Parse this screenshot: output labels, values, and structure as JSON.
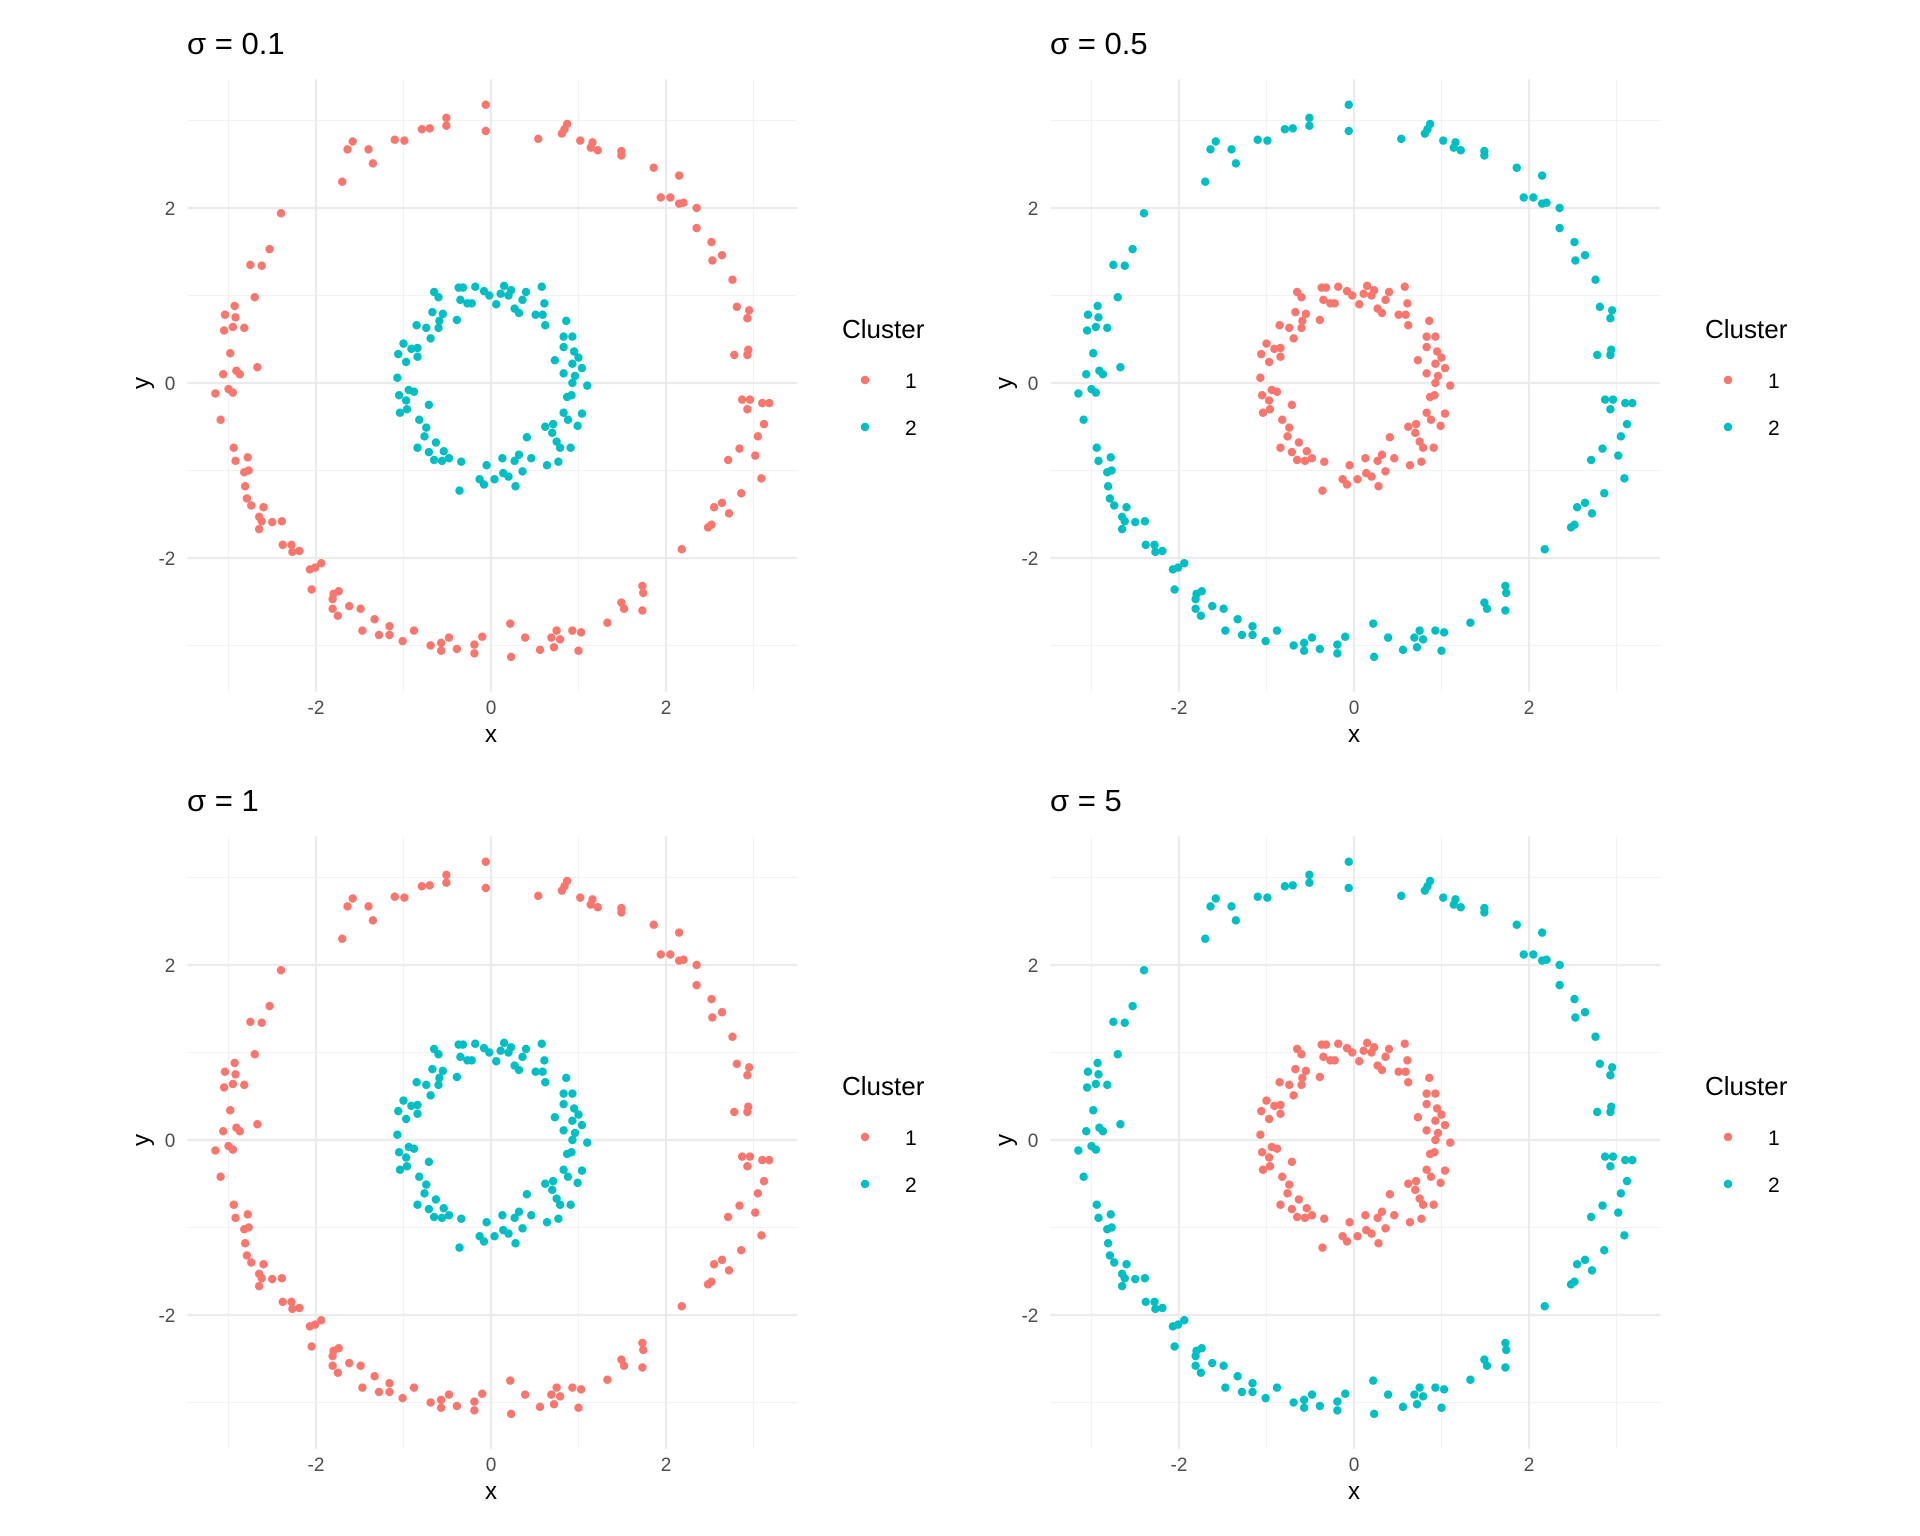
{
  "chart_data": {
    "type": "scatter",
    "xlabel": "x",
    "ylabel": "y",
    "xlim": [
      -3.47,
      3.5
    ],
    "ylim": [
      -3.53,
      3.47
    ],
    "x_ticks": [
      "-2",
      "0",
      "2"
    ],
    "y_ticks": [
      "-2",
      "0",
      "2"
    ],
    "grid": true,
    "legend": {
      "title": "Cluster",
      "placement": "right",
      "entries": [
        "1",
        "2"
      ]
    },
    "colors": {
      "1": "#F8766D",
      "2": "#00BFC4"
    },
    "facets": [
      {
        "title": "σ = 0.1",
        "group_cluster": [
          "1",
          "2"
        ]
      },
      {
        "title": "σ = 0.5",
        "group_cluster": [
          "2",
          "1"
        ]
      },
      {
        "title": "σ = 1",
        "group_cluster": [
          "1",
          "2"
        ]
      },
      {
        "title": "σ = 5",
        "group_cluster": [
          "2",
          "1"
        ]
      }
    ],
    "groups": [
      {
        "points": [
          [
            -0.06,
            3.18
          ],
          [
            -0.06,
            2.88
          ],
          [
            -0.51,
            3.03
          ],
          [
            -0.51,
            2.94
          ],
          [
            -0.7,
            2.91
          ],
          [
            -0.79,
            2.9
          ],
          [
            -0.99,
            2.77
          ],
          [
            -1.1,
            2.78
          ],
          [
            -1.35,
            2.51
          ],
          [
            -1.4,
            2.67
          ],
          [
            -1.58,
            2.76
          ],
          [
            -1.64,
            2.67
          ],
          [
            -1.7,
            2.3
          ],
          [
            -2.4,
            1.94
          ],
          [
            -2.53,
            1.53
          ],
          [
            -2.62,
            1.34
          ],
          [
            -2.75,
            1.35
          ],
          [
            -2.7,
            0.98
          ],
          [
            -2.93,
            0.88
          ],
          [
            -3.04,
            0.78
          ],
          [
            -2.92,
            0.75
          ],
          [
            -2.95,
            0.64
          ],
          [
            -2.82,
            0.63
          ],
          [
            -3.05,
            0.6
          ],
          [
            -2.98,
            0.34
          ],
          [
            -2.67,
            0.18
          ],
          [
            -2.91,
            0.14
          ],
          [
            -3.06,
            0.1
          ],
          [
            -2.87,
            0.1
          ],
          [
            -3.15,
            -0.12
          ],
          [
            -3.0,
            -0.07
          ],
          [
            -2.95,
            -0.11
          ],
          [
            -3.09,
            -0.42
          ],
          [
            -2.94,
            -0.74
          ],
          [
            -2.92,
            -0.89
          ],
          [
            -2.78,
            -0.85
          ],
          [
            -2.82,
            -1.02
          ],
          [
            -2.77,
            -1.0
          ],
          [
            -2.81,
            -1.18
          ],
          [
            -2.79,
            -1.32
          ],
          [
            -2.74,
            -1.4
          ],
          [
            -2.6,
            -1.42
          ],
          [
            -2.65,
            -1.53
          ],
          [
            -2.62,
            -1.58
          ],
          [
            -2.65,
            -1.67
          ],
          [
            -2.5,
            -1.59
          ],
          [
            -2.39,
            -1.58
          ],
          [
            -2.38,
            -1.85
          ],
          [
            -2.28,
            -1.85
          ],
          [
            -2.27,
            -1.93
          ],
          [
            -2.19,
            -1.92
          ],
          [
            -2.07,
            -2.13
          ],
          [
            -2.01,
            -2.11
          ],
          [
            -1.94,
            -2.06
          ],
          [
            -2.05,
            -2.36
          ],
          [
            -1.74,
            -2.38
          ],
          [
            -1.8,
            -2.41
          ],
          [
            -1.81,
            -2.47
          ],
          [
            -1.81,
            -2.58
          ],
          [
            -1.75,
            -2.66
          ],
          [
            -1.62,
            -2.55
          ],
          [
            -1.49,
            -2.58
          ],
          [
            -1.47,
            -2.83
          ],
          [
            -1.33,
            -2.7
          ],
          [
            -1.28,
            -2.88
          ],
          [
            -1.16,
            -2.78
          ],
          [
            -1.16,
            -2.88
          ],
          [
            -1.01,
            -2.95
          ],
          [
            -0.88,
            -2.83
          ],
          [
            -0.69,
            -3.0
          ],
          [
            -0.57,
            -2.97
          ],
          [
            -0.57,
            -3.06
          ],
          [
            -0.48,
            -2.91
          ],
          [
            -0.39,
            -3.04
          ],
          [
            -0.19,
            -2.99
          ],
          [
            -0.19,
            -3.09
          ],
          [
            -0.1,
            -2.9
          ],
          [
            0.22,
            -2.75
          ],
          [
            0.23,
            -3.13
          ],
          [
            0.39,
            -2.91
          ],
          [
            0.56,
            -3.05
          ],
          [
            0.69,
            -2.91
          ],
          [
            0.72,
            -3.02
          ],
          [
            0.75,
            -2.83
          ],
          [
            0.79,
            -2.93
          ],
          [
            0.93,
            -2.83
          ],
          [
            1.03,
            -2.85
          ],
          [
            1.0,
            -3.06
          ],
          [
            1.33,
            -2.74
          ],
          [
            1.49,
            -2.51
          ],
          [
            1.52,
            -2.58
          ],
          [
            1.73,
            -2.32
          ],
          [
            1.74,
            -2.4
          ],
          [
            1.73,
            -2.6
          ],
          [
            2.18,
            -1.9
          ],
          [
            2.48,
            -1.65
          ],
          [
            2.52,
            -1.62
          ],
          [
            2.55,
            -1.42
          ],
          [
            2.64,
            -1.37
          ],
          [
            2.72,
            -1.49
          ],
          [
            2.86,
            -1.26
          ],
          [
            2.71,
            -0.88
          ],
          [
            2.84,
            -0.75
          ],
          [
            3.02,
            -0.83
          ],
          [
            3.09,
            -1.09
          ],
          [
            3.05,
            -0.61
          ],
          [
            3.12,
            -0.47
          ],
          [
            2.87,
            -0.19
          ],
          [
            2.96,
            -0.19
          ],
          [
            2.93,
            -0.3
          ],
          [
            3.1,
            -0.23
          ],
          [
            3.18,
            -0.23
          ],
          [
            2.78,
            0.32
          ],
          [
            2.93,
            0.32
          ],
          [
            2.94,
            0.38
          ],
          [
            2.93,
            0.74
          ],
          [
            2.95,
            0.83
          ],
          [
            2.81,
            0.87
          ],
          [
            2.76,
            1.18
          ],
          [
            2.53,
            1.4
          ],
          [
            2.64,
            1.46
          ],
          [
            2.52,
            1.61
          ],
          [
            2.35,
            1.77
          ],
          [
            2.35,
            2.0
          ],
          [
            2.15,
            2.05
          ],
          [
            2.2,
            2.06
          ],
          [
            1.94,
            2.12
          ],
          [
            2.05,
            2.12
          ],
          [
            2.15,
            2.37
          ],
          [
            1.86,
            2.46
          ],
          [
            1.49,
            2.65
          ],
          [
            1.49,
            2.6
          ],
          [
            1.22,
            2.66
          ],
          [
            1.16,
            2.75
          ],
          [
            1.14,
            2.69
          ],
          [
            1.02,
            2.77
          ],
          [
            0.87,
            2.96
          ],
          [
            0.84,
            2.9
          ],
          [
            0.81,
            2.85
          ],
          [
            0.54,
            2.79
          ]
        ]
      },
      {
        "points": [
          [
            -0.37,
            1.09
          ],
          [
            -0.32,
            1.09
          ],
          [
            -0.18,
            1.1
          ],
          [
            -0.08,
            1.05
          ],
          [
            -0.02,
            1.0
          ],
          [
            0.06,
            0.9
          ],
          [
            0.11,
            1.02
          ],
          [
            0.15,
            1.11
          ],
          [
            0.23,
            1.06
          ],
          [
            0.2,
            1.0
          ],
          [
            0.4,
            1.04
          ],
          [
            0.36,
            0.95
          ],
          [
            0.27,
            0.85
          ],
          [
            0.32,
            0.8
          ],
          [
            0.58,
            1.1
          ],
          [
            0.61,
            0.91
          ],
          [
            0.51,
            0.78
          ],
          [
            0.59,
            0.78
          ],
          [
            0.62,
            0.66
          ],
          [
            0.86,
            0.71
          ],
          [
            0.83,
            0.53
          ],
          [
            0.93,
            0.53
          ],
          [
            0.83,
            0.41
          ],
          [
            0.95,
            0.36
          ],
          [
            1.0,
            0.29
          ],
          [
            0.73,
            0.26
          ],
          [
            0.93,
            0.22
          ],
          [
            1.04,
            0.17
          ],
          [
            0.83,
            0.11
          ],
          [
            0.96,
            0.08
          ],
          [
            1.1,
            -0.03
          ],
          [
            0.93,
            0.0
          ],
          [
            0.92,
            -0.14
          ],
          [
            0.87,
            -0.16
          ],
          [
            1.04,
            -0.35
          ],
          [
            0.83,
            -0.34
          ],
          [
            0.88,
            -0.42
          ],
          [
            0.99,
            -0.49
          ],
          [
            0.62,
            -0.5
          ],
          [
            0.71,
            -0.47
          ],
          [
            0.7,
            -0.57
          ],
          [
            0.75,
            -0.67
          ],
          [
            0.79,
            -0.74
          ],
          [
            0.91,
            -0.74
          ],
          [
            0.41,
            -0.62
          ],
          [
            0.46,
            -0.86
          ],
          [
            0.64,
            -0.94
          ],
          [
            0.77,
            -0.9
          ],
          [
            0.32,
            -0.82
          ],
          [
            0.27,
            -0.89
          ],
          [
            0.36,
            -1.01
          ],
          [
            0.28,
            -1.18
          ],
          [
            0.13,
            -0.86
          ],
          [
            -0.05,
            -0.94
          ],
          [
            0.14,
            -1.03
          ],
          [
            0.2,
            -1.07
          ],
          [
            0.04,
            -1.1
          ],
          [
            -0.13,
            -1.1
          ],
          [
            -0.08,
            -1.16
          ],
          [
            -0.36,
            -1.23
          ],
          [
            -0.34,
            -0.9
          ],
          [
            -0.48,
            -0.86
          ],
          [
            -0.56,
            -0.89
          ],
          [
            -0.65,
            -0.88
          ],
          [
            -0.54,
            -0.78
          ],
          [
            -0.71,
            -0.79
          ],
          [
            -0.84,
            -0.74
          ],
          [
            -0.63,
            -0.68
          ],
          [
            -0.76,
            -0.61
          ],
          [
            -0.74,
            -0.51
          ],
          [
            -0.82,
            -0.42
          ],
          [
            -0.71,
            -0.25
          ],
          [
            -0.96,
            -0.3
          ],
          [
            -1.04,
            -0.34
          ],
          [
            -0.97,
            -0.2
          ],
          [
            -0.88,
            -0.1
          ],
          [
            -0.94,
            -0.08
          ],
          [
            -1.05,
            -0.14
          ],
          [
            -1.07,
            0.06
          ],
          [
            -0.97,
            0.24
          ],
          [
            -1.06,
            0.33
          ],
          [
            -1.0,
            0.45
          ],
          [
            -0.84,
            0.3
          ],
          [
            -0.84,
            0.4
          ],
          [
            -0.91,
            0.39
          ],
          [
            -0.69,
            0.51
          ],
          [
            -0.74,
            0.63
          ],
          [
            -0.85,
            0.66
          ],
          [
            -0.6,
            0.63
          ],
          [
            -0.59,
            0.71
          ],
          [
            -0.67,
            0.81
          ],
          [
            -0.55,
            0.79
          ],
          [
            -0.39,
            0.72
          ],
          [
            -0.65,
            1.04
          ],
          [
            -0.6,
            0.98
          ],
          [
            -0.35,
            0.95
          ],
          [
            -0.27,
            0.91
          ],
          [
            -0.22,
            0.91
          ]
        ]
      }
    ]
  }
}
